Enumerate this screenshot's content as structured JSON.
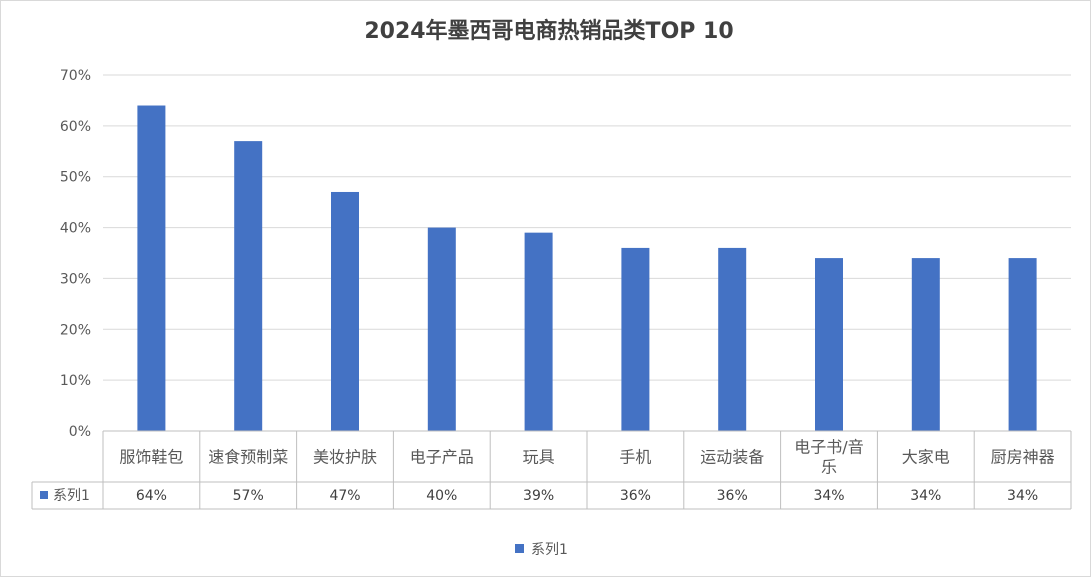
{
  "chart_data": {
    "type": "bar",
    "title": "2024年墨西哥电商热销品类TOP 10",
    "categories": [
      "服饰鞋包",
      "速食预制菜",
      "美妆护肤",
      "电子产品",
      "玩具",
      "手机",
      "运动装备",
      "电子书/音乐",
      "大家电",
      "厨房神器"
    ],
    "series": [
      {
        "name": "系列1",
        "values": [
          64,
          57,
          47,
          40,
          39,
          36,
          36,
          34,
          34,
          34
        ],
        "value_labels": [
          "64%",
          "57%",
          "47%",
          "40%",
          "39%",
          "36%",
          "36%",
          "34%",
          "34%",
          "34%"
        ],
        "color": "#4472C4"
      }
    ],
    "y_ticks": [
      "0%",
      "10%",
      "20%",
      "30%",
      "40%",
      "50%",
      "60%",
      "70%"
    ],
    "ylim": [
      0,
      70
    ],
    "grid": true,
    "data_table": true,
    "legend": "bottom-center"
  }
}
